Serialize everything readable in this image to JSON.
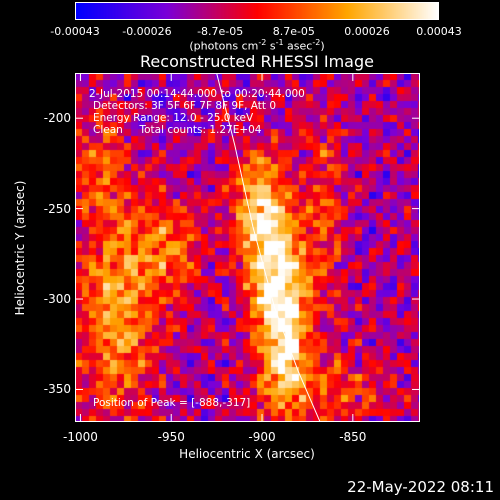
{
  "colorbar": {
    "tick_labels": [
      "-0.00043",
      "-0.00026",
      "-8.7e-05",
      "8.7e-05",
      "0.00026",
      "0.00043"
    ],
    "tick_values": [
      -0.00043,
      -0.00026,
      -8.7e-05,
      8.7e-05,
      0.00026,
      0.00043
    ],
    "range": [
      -0.00043,
      0.00043
    ],
    "unit_parts": [
      "(photons cm",
      "-2",
      " s",
      "-1",
      " asec",
      "-2",
      ")"
    ],
    "colormap": [
      "#0000ff",
      "#7a00d8",
      "#ff0000",
      "#ffa500",
      "#ffffff"
    ]
  },
  "annotations": {
    "time": "2-Jul-2015 00:14:44.000 to 00:20:44.000",
    "detectors": "Detectors: 3F 5F 6F 7F 8F 9F, Att 0",
    "energy": "Energy Range: 12.0 - 25.0 keV",
    "clean": "Clean     Total counts: 1.27E+04",
    "peak": "Position of Peak = [-888,-317]"
  },
  "footer": {
    "date": "22-May-2022 08:11"
  },
  "chart_data": {
    "type": "heatmap",
    "title": "Reconstructed RHESSI Image",
    "xlabel": "Heliocentric X (arcsec)",
    "ylabel": "Heliocentric Y (arcsec)",
    "xlim": [
      -1003,
      -813
    ],
    "ylim": [
      -368,
      -175
    ],
    "x_ticks": [
      -1000,
      -950,
      -900,
      -850
    ],
    "y_ticks": [
      -200,
      -250,
      -300,
      -350
    ],
    "peak_position": [
      -888,
      -317
    ],
    "limb_curve": [
      [
        -925,
        -175
      ],
      [
        -915,
        -215
      ],
      [
        -905,
        -260
      ],
      [
        -893,
        -305
      ],
      [
        -880,
        -340
      ],
      [
        -868,
        -368
      ]
    ],
    "bright_regions": [
      {
        "x": -888,
        "y": -317,
        "sx": 10,
        "sy": 32,
        "amp": 1.0
      },
      {
        "x": -897,
        "y": -272,
        "sx": 12,
        "sy": 28,
        "amp": 0.75
      },
      {
        "x": -903,
        "y": -240,
        "sx": 10,
        "sy": 18,
        "amp": 0.5
      },
      {
        "x": -980,
        "y": -305,
        "sx": 16,
        "sy": 40,
        "amp": 0.7
      },
      {
        "x": -950,
        "y": -270,
        "sx": 14,
        "sy": 20,
        "amp": 0.45
      },
      {
        "x": -990,
        "y": -225,
        "sx": 10,
        "sy": 20,
        "amp": 0.45
      },
      {
        "x": -865,
        "y": -250,
        "sx": 8,
        "sy": 40,
        "amp": 0.4
      },
      {
        "x": -860,
        "y": -350,
        "sx": 22,
        "sy": 14,
        "amp": 0.4
      }
    ]
  }
}
